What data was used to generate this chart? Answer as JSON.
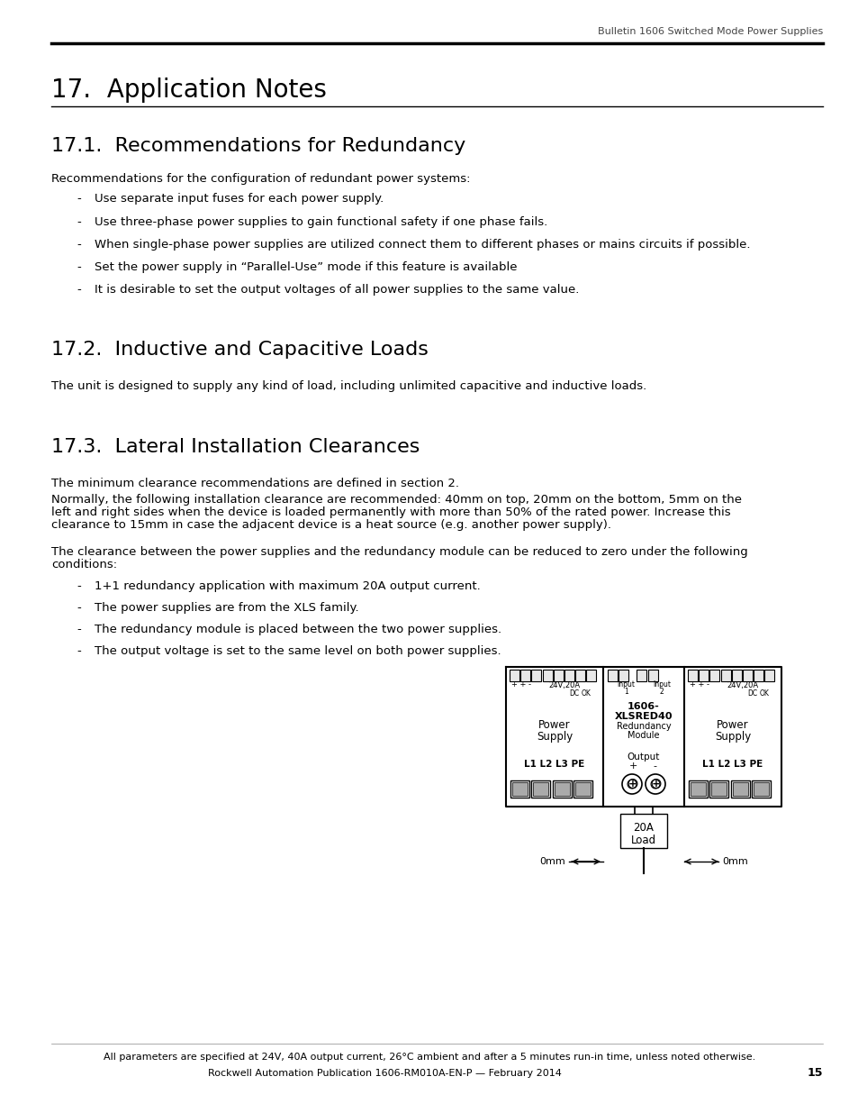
{
  "header_right": "Bulletin 1606 Switched Mode Power Supplies",
  "title": "17.  Application Notes",
  "section1_title": "17.1.  Recommendations for Redundancy",
  "section1_intro": "Recommendations for the configuration of redundant power systems:",
  "section1_bullets": [
    "Use separate input fuses for each power supply.",
    "Use three-phase power supplies to gain functional safety if one phase fails.",
    "When single-phase power supplies are utilized connect them to different phases or mains circuits if possible.",
    "Set the power supply in “Parallel-Use” mode if this feature is available",
    "It is desirable to set the output voltages of all power supplies to the same value."
  ],
  "section2_title": "17.2.  Inductive and Capacitive Loads",
  "section2_text": "The unit is designed to supply any kind of load, including unlimited capacitive and inductive loads.",
  "section3_title": "17.3.  Lateral Installation Clearances",
  "section3_text1": "The minimum clearance recommendations are defined in section 2.",
  "section3_text2a": "Normally, the following installation clearance are recommended: 40mm on top, 20mm on the bottom, 5mm on the",
  "section3_text2b": "left and right sides when the device is loaded permanently with more than 50% of the rated power. Increase this",
  "section3_text2c": "clearance to 15mm in case the adjacent device is a heat source (e.g. another power supply).",
  "section3_text3a": "The clearance between the power supplies and the redundancy module can be reduced to zero under the following",
  "section3_text3b": "conditions:",
  "section3_bullets": [
    "1+1 redundancy application with maximum 20A output current.",
    "The power supplies are from the XLS family.",
    "The redundancy module is placed between the two power supplies.",
    "The output voltage is set to the same level on both power supplies."
  ],
  "footer_text1": "All parameters are specified at 24V, 40A output current, 26°C ambient and after a 5 minutes run-in time, unless noted otherwise.",
  "footer_text2": "Rockwell Automation Publication 1606-RM010A-EN-P — February 2014",
  "footer_page": "15",
  "bg_color": "#ffffff",
  "text_color": "#000000"
}
